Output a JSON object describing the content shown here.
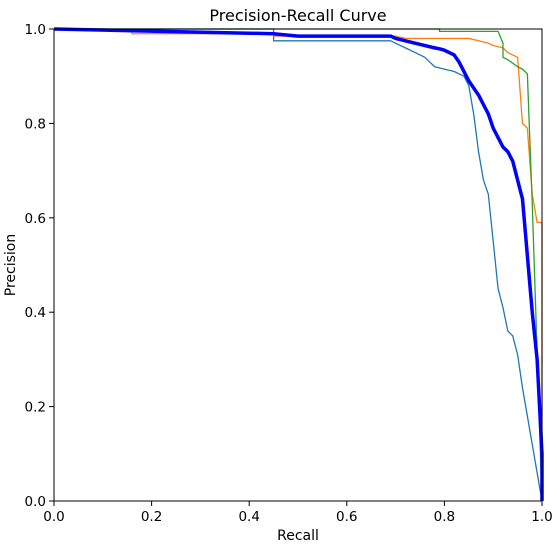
{
  "chart_data": {
    "type": "line",
    "title": "Precision-Recall Curve",
    "xlabel": "Recall",
    "ylabel": "Precision",
    "xlim": [
      0.0,
      1.0
    ],
    "ylim": [
      0.0,
      1.0
    ],
    "x_ticks": [
      "0.0",
      "0.2",
      "0.4",
      "0.6",
      "0.8",
      "1.0"
    ],
    "y_ticks": [
      "0.0",
      "0.2",
      "0.4",
      "0.6",
      "0.8",
      "1.0"
    ],
    "grid": false,
    "legend": false,
    "series": [
      {
        "color": "#1f77b4",
        "width": "thin",
        "x": [
          0.0,
          0.45,
          0.45,
          0.69,
          0.7,
          0.72,
          0.74,
          0.76,
          0.77,
          0.78,
          0.8,
          0.82,
          0.83,
          0.84,
          0.85,
          0.86,
          0.87,
          0.88,
          0.89,
          0.9,
          0.91,
          0.92,
          0.93,
          0.94,
          0.95,
          0.96,
          1.0
        ],
        "y": [
          1.0,
          1.0,
          0.975,
          0.975,
          0.97,
          0.96,
          0.95,
          0.94,
          0.93,
          0.92,
          0.915,
          0.91,
          0.905,
          0.9,
          0.88,
          0.82,
          0.74,
          0.68,
          0.65,
          0.55,
          0.45,
          0.41,
          0.36,
          0.35,
          0.31,
          0.24,
          0.0
        ]
      },
      {
        "color": "#ff7f0e",
        "width": "thin",
        "x": [
          0.0,
          0.16,
          0.16,
          0.45,
          0.45,
          0.7,
          0.72,
          0.85,
          0.87,
          0.89,
          0.9,
          0.92,
          0.93,
          0.95,
          0.96,
          0.97,
          0.98,
          0.99,
          1.0,
          1.0
        ],
        "y": [
          1.0,
          1.0,
          0.99,
          0.99,
          0.985,
          0.985,
          0.98,
          0.98,
          0.975,
          0.97,
          0.965,
          0.96,
          0.95,
          0.94,
          0.8,
          0.79,
          0.65,
          0.59,
          0.59,
          0.0
        ]
      },
      {
        "color": "#2ca02c",
        "width": "thin",
        "x": [
          0.0,
          0.79,
          0.79,
          0.91,
          0.92,
          0.92,
          0.93,
          0.95,
          0.96,
          0.97,
          0.98,
          1.0
        ],
        "y": [
          1.0,
          1.0,
          0.995,
          0.995,
          0.97,
          0.94,
          0.935,
          0.92,
          0.915,
          0.905,
          0.63,
          0.0
        ]
      },
      {
        "color": "#0000ff",
        "width": "thick",
        "x": [
          0.0,
          0.45,
          0.5,
          0.69,
          0.7,
          0.72,
          0.74,
          0.76,
          0.78,
          0.79,
          0.8,
          0.81,
          0.82,
          0.83,
          0.84,
          0.85,
          0.86,
          0.87,
          0.88,
          0.89,
          0.9,
          0.91,
          0.92,
          0.93,
          0.94,
          0.95,
          0.96,
          0.97,
          0.98,
          0.99,
          1.0,
          1.0
        ],
        "y": [
          1.0,
          0.99,
          0.985,
          0.985,
          0.98,
          0.975,
          0.97,
          0.965,
          0.96,
          0.958,
          0.955,
          0.95,
          0.945,
          0.93,
          0.91,
          0.89,
          0.875,
          0.86,
          0.84,
          0.82,
          0.79,
          0.77,
          0.75,
          0.74,
          0.72,
          0.68,
          0.64,
          0.52,
          0.4,
          0.3,
          0.1,
          0.0
        ]
      }
    ]
  }
}
